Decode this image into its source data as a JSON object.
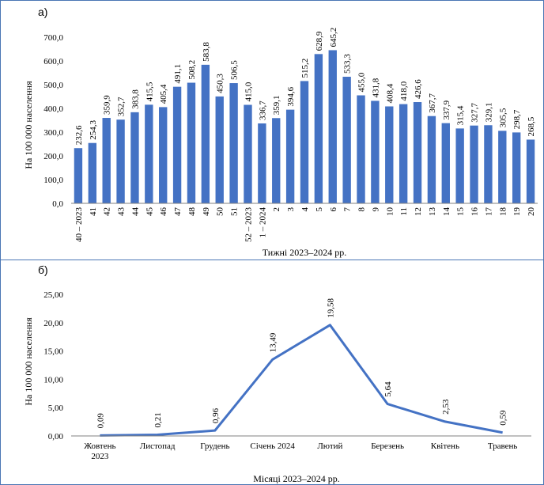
{
  "chart_data": [
    {
      "type": "bar",
      "panel_label": "а)",
      "title": "",
      "xlabel": "Тижні 2023–2024 рр.",
      "ylabel": "На 100 000 населення",
      "ylim": [
        0,
        700
      ],
      "yticks": [
        "0,0",
        "100,0",
        "200,0",
        "300,0",
        "400,0",
        "500,0",
        "600,0",
        "700,0"
      ],
      "grid": false,
      "bar_color": "#4472c4",
      "categories": [
        "40 – 2023",
        "41",
        "42",
        "43",
        "44",
        "45",
        "46",
        "47",
        "48",
        "49",
        "50",
        "51",
        "52 – 2023",
        "1 – 2024",
        "2",
        "3",
        "4",
        "5",
        "6",
        "7",
        "8",
        "9",
        "10",
        "11",
        "12",
        "13",
        "14",
        "15",
        "16",
        "17",
        "18",
        "19",
        "20"
      ],
      "values": [
        232.6,
        254.3,
        359.9,
        352.7,
        383.8,
        415.5,
        405.4,
        491.1,
        508.2,
        583.8,
        450.3,
        506.5,
        415.0,
        336.7,
        359.1,
        394.6,
        515.2,
        628.9,
        645.2,
        533.3,
        455.0,
        431.8,
        408.4,
        418.0,
        426.6,
        367.7,
        337.9,
        315.4,
        327.7,
        329.1,
        305.5,
        298.7,
        268.5
      ],
      "value_labels": [
        "232,6",
        "254,3",
        "359,9",
        "352,7",
        "383,8",
        "415,5",
        "405,4",
        "491,1",
        "508,2",
        "583,8",
        "450,3",
        "506,5",
        "415,0",
        "336,7",
        "359,1",
        "394,6",
        "515,2",
        "628,9",
        "645,2",
        "533,3",
        "455,0",
        "431,8",
        "408,4",
        "418,0",
        "426,6",
        "367,7",
        "337,9",
        "315,4",
        "327,7",
        "329,1",
        "305,5",
        "298,7",
        "268,5"
      ]
    },
    {
      "type": "line",
      "panel_label": "б)",
      "title": "",
      "xlabel": "Місяці 2023–2024 рр.",
      "ylabel": "На 100 000 населення",
      "ylim": [
        0,
        25
      ],
      "yticks": [
        "0,00",
        "5,00",
        "10,00",
        "15,00",
        "20,00",
        "25,00"
      ],
      "grid": false,
      "line_color": "#4472c4",
      "categories": [
        [
          "Жовтень",
          "2023"
        ],
        [
          "Листопад"
        ],
        [
          "Грудень"
        ],
        [
          "Січень 2024"
        ],
        [
          "Лютий"
        ],
        [
          "Березень"
        ],
        [
          "Квітень"
        ],
        [
          "Травень"
        ]
      ],
      "values": [
        0.09,
        0.21,
        0.96,
        13.49,
        19.58,
        5.64,
        2.53,
        0.59
      ],
      "value_labels": [
        "0,09",
        "0,21",
        "0,96",
        "13,49",
        "19,58",
        "5,64",
        "2,53",
        "0,59"
      ]
    }
  ]
}
